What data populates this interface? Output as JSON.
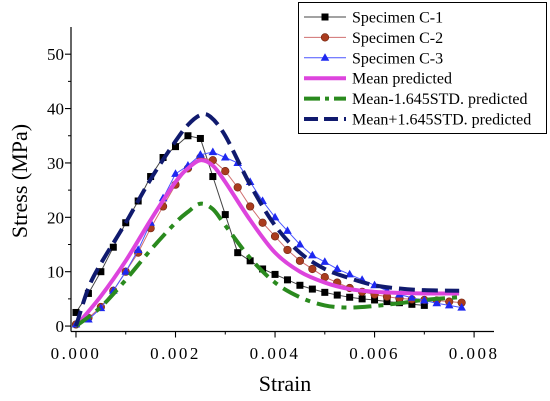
{
  "chart_data": {
    "type": "line",
    "xlabel": "Strain",
    "ylabel": "Stress (MPa)",
    "xlim": [
      -0.0001,
      0.0084
    ],
    "ylim": [
      -1,
      55
    ],
    "x_ticks": [
      0,
      0.002,
      0.004,
      0.006,
      0.008
    ],
    "x_tick_labels": [
      "0.000",
      "0.002",
      "0.004",
      "0.006",
      "0.008"
    ],
    "y_ticks": [
      0,
      10,
      20,
      30,
      40,
      50
    ],
    "y_tick_labels": [
      "0",
      "10",
      "20",
      "30",
      "40",
      "50"
    ],
    "grid": false,
    "legend_position": "top-right",
    "series": [
      {
        "name": "Specimen C-1",
        "color": "#000000",
        "line_color": "#444444",
        "marker": "square",
        "line_style": "solid",
        "x": [
          0,
          0.00025,
          0.0005,
          0.00075,
          0.001,
          0.00125,
          0.0015,
          0.00175,
          0.002,
          0.00225,
          0.0025,
          0.00275,
          0.003,
          0.00325,
          0.0035,
          0.00375,
          0.004,
          0.00425,
          0.0045,
          0.00475,
          0.005,
          0.00525,
          0.0055,
          0.00575,
          0.006,
          0.00625,
          0.0065,
          0.00675,
          0.007
        ],
        "y": [
          2.5,
          6,
          10,
          14.5,
          19,
          23,
          27.5,
          31,
          33,
          35,
          34.5,
          27.5,
          20.5,
          13.5,
          12,
          10.5,
          9.5,
          8.5,
          7.5,
          6.8,
          6.2,
          5.7,
          5.3,
          5,
          4.8,
          4.5,
          4.3,
          4,
          3.8
        ]
      },
      {
        "name": "Specimen C-2",
        "color": "#aa3c1e",
        "line_color": "#d07070",
        "marker": "circle",
        "line_style": "solid",
        "x": [
          0,
          0.00025,
          0.0005,
          0.00075,
          0.001,
          0.00125,
          0.0015,
          0.00175,
          0.002,
          0.00225,
          0.0025,
          0.00275,
          0.003,
          0.00325,
          0.0035,
          0.00375,
          0.004,
          0.00425,
          0.0045,
          0.00475,
          0.005,
          0.00525,
          0.0055,
          0.00575,
          0.006,
          0.00625,
          0.0065,
          0.00675,
          0.007,
          0.00725,
          0.0075,
          0.00775
        ],
        "y": [
          0.3,
          1.5,
          3.5,
          6.5,
          10,
          13.5,
          18,
          22,
          26,
          29,
          31,
          30.5,
          28.5,
          25.5,
          22,
          19,
          16.5,
          14,
          12,
          10.5,
          9,
          8,
          7,
          6.3,
          5.8,
          5.4,
          5.1,
          4.9,
          4.8,
          4.7,
          4.5,
          4.3
        ]
      },
      {
        "name": "Specimen C-3",
        "color": "#1e28f0",
        "line_color": "#4a55ff",
        "marker": "triangle",
        "line_style": "solid",
        "x": [
          0,
          0.00025,
          0.0005,
          0.00075,
          0.001,
          0.00125,
          0.0015,
          0.00175,
          0.002,
          0.00225,
          0.0025,
          0.00275,
          0.003,
          0.00325,
          0.0035,
          0.00375,
          0.004,
          0.00425,
          0.0045,
          0.00475,
          0.005,
          0.00525,
          0.0055,
          0.00575,
          0.006,
          0.00625,
          0.0065,
          0.00675,
          0.007,
          0.00725,
          0.0075,
          0.00775
        ],
        "y": [
          0.3,
          1.2,
          3.3,
          6.5,
          10,
          14,
          19,
          23.5,
          28,
          29.5,
          31.5,
          32,
          31,
          30,
          26.5,
          23,
          20,
          17.5,
          15,
          13,
          11.8,
          10.5,
          9.5,
          8.5,
          7.5,
          6.5,
          5.8,
          5.2,
          4.7,
          4.2,
          3.8,
          3.4
        ]
      },
      {
        "name": "Mean predicted",
        "color": "#dd44dd",
        "line_color": "#dd44dd",
        "marker": "none",
        "line_style": "solid",
        "x": [
          0,
          0.0005,
          0.001,
          0.0015,
          0.002,
          0.00225,
          0.0025,
          0.00275,
          0.003,
          0.0035,
          0.004,
          0.0045,
          0.005,
          0.0055,
          0.006,
          0.0065,
          0.007,
          0.0077
        ],
        "y": [
          0,
          5.5,
          12,
          19.5,
          26.5,
          29,
          30.5,
          29.5,
          26.5,
          19.5,
          13.5,
          10,
          8,
          6.8,
          6.3,
          6.1,
          6,
          6
        ]
      },
      {
        "name": "Mean-1.645STD. predicted",
        "color": "#2a8a1e",
        "line_color": "#2a8a1e",
        "marker": "none",
        "line_style": "dashdot",
        "x": [
          0,
          0.0005,
          0.001,
          0.0015,
          0.002,
          0.00225,
          0.0025,
          0.00275,
          0.003,
          0.0035,
          0.004,
          0.0045,
          0.005,
          0.0055,
          0.006,
          0.0065,
          0.007,
          0.0077
        ],
        "y": [
          0,
          3.5,
          8.5,
          14,
          19,
          21,
          22.5,
          21.5,
          18.5,
          12.5,
          8,
          5.3,
          3.8,
          3.4,
          3.7,
          4.2,
          4.8,
          5.3
        ]
      },
      {
        "name": "Mean+1.645STD. predicted",
        "color": "#101a6e",
        "line_color": "#101a6e",
        "marker": "none",
        "line_style": "dash",
        "x": [
          0,
          0.00025,
          0.0005,
          0.001,
          0.0015,
          0.002,
          0.00225,
          0.0025,
          0.0027,
          0.003,
          0.0035,
          0.004,
          0.0045,
          0.005,
          0.0055,
          0.006,
          0.0065,
          0.007,
          0.0077
        ],
        "y": [
          0,
          7,
          11.5,
          19,
          27,
          34,
          37,
          38.8,
          38.5,
          35,
          26,
          18.5,
          13.5,
          10.5,
          8.8,
          7.5,
          6.9,
          6.6,
          6.5
        ]
      }
    ]
  }
}
